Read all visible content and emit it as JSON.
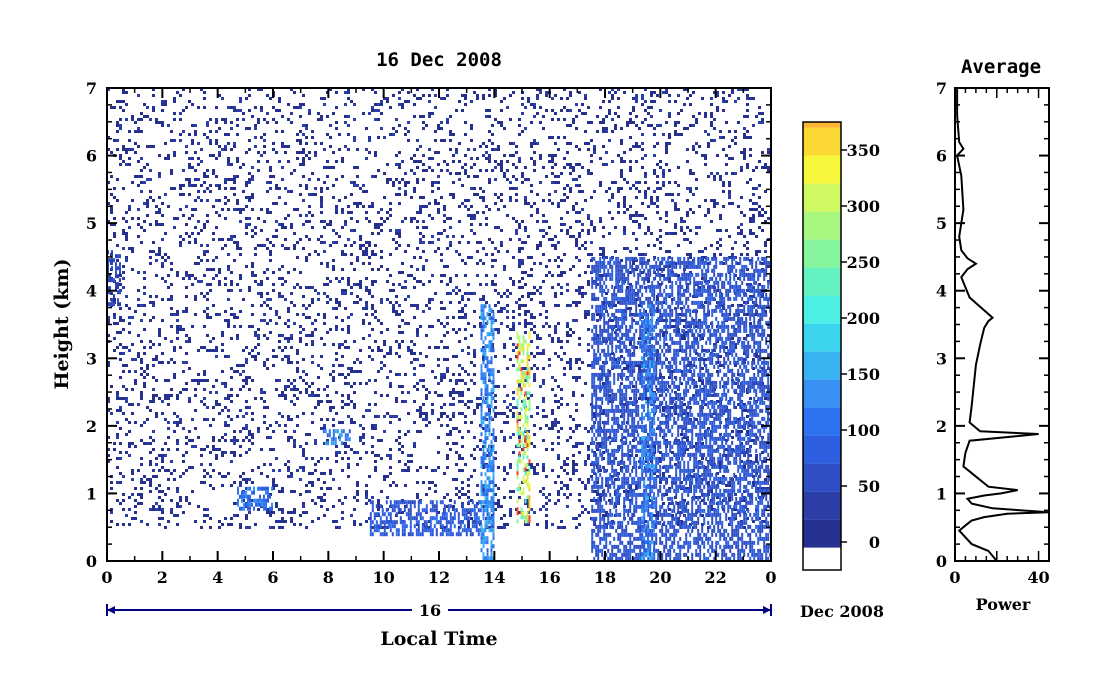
{
  "chart_data": [
    {
      "type": "heatmap",
      "title": "16 Dec 2008",
      "xlabel": "Local Time",
      "ylabel": "Height (km)",
      "x_ticks": [
        "0",
        "2",
        "4",
        "6",
        "8",
        "10",
        "12",
        "14",
        "16",
        "18",
        "20",
        "22",
        "0"
      ],
      "y_ticks": [
        "0",
        "1",
        "2",
        "3",
        "4",
        "5",
        "6",
        "7"
      ],
      "xlim": [
        0,
        24
      ],
      "ylim": [
        0,
        7
      ],
      "date_bar": {
        "day_label": "16",
        "end_label": "Dec 2008"
      },
      "colorbar": {
        "range": [
          -25,
          375
        ],
        "tick_labels": [
          "0",
          "50",
          "100",
          "150",
          "200",
          "250",
          "300",
          "350"
        ],
        "tick_values": [
          0,
          50,
          100,
          150,
          200,
          250,
          300,
          350
        ],
        "colors": [
          "#ffffff",
          "#25308f",
          "#2c3fa8",
          "#2f4ec4",
          "#2e5fe0",
          "#2e74f0",
          "#3891f2",
          "#38b2f0",
          "#3bd3ee",
          "#4ef0e6",
          "#64f2c0",
          "#86f59d",
          "#a8f77f",
          "#d0f860",
          "#f6f63a",
          "#fad733",
          "#fbb531",
          "#f9902e",
          "#f76c2c",
          "#f3412a"
        ],
        "bounds": [
          -25,
          -5,
          20,
          45,
          70,
          95,
          120,
          145,
          170,
          195,
          220,
          245,
          270,
          295,
          320,
          345,
          370,
          375
        ]
      },
      "features": [
        {
          "label": "noise",
          "x_range": [
            0,
            24
          ],
          "height_range": [
            0.5,
            7
          ],
          "value_range": [
            0,
            25
          ]
        },
        {
          "label": "echo layer",
          "x_range": [
            0,
            0.5
          ],
          "height_range": [
            3.8,
            4.6
          ],
          "value": 60
        },
        {
          "label": "echo layer",
          "x_range": [
            4.7,
            6.0
          ],
          "height_range": [
            0.8,
            1.1
          ],
          "value": 120
        },
        {
          "label": "echo layer",
          "x_range": [
            7.8,
            8.8
          ],
          "height_range": [
            1.75,
            1.95
          ],
          "value": 140
        },
        {
          "label": "echo layer",
          "x_range": [
            9.5,
            13.5
          ],
          "height_range": [
            0.4,
            0.9
          ],
          "value": 90
        },
        {
          "label": "echo column",
          "x_range": [
            13.5,
            14.0
          ],
          "height_range": [
            0,
            3.8
          ],
          "value": 150
        },
        {
          "label": "echo column",
          "x_range": [
            14.8,
            15.3
          ],
          "height_range": [
            0.6,
            3.4
          ],
          "value": 360
        },
        {
          "label": "echo column",
          "x_range": [
            17.5,
            24
          ],
          "height_range": [
            0,
            4.5
          ],
          "value": 80
        },
        {
          "label": "echo column",
          "x_range": [
            19.3,
            19.8
          ],
          "height_range": [
            0,
            3.8
          ],
          "value": 140
        }
      ]
    },
    {
      "type": "line",
      "title": "Average",
      "xlabel": "Power",
      "ylabel": "",
      "x_ticks": [
        "0",
        "40"
      ],
      "y_ticks": [
        "0",
        "1",
        "2",
        "3",
        "4",
        "5",
        "6",
        "7"
      ],
      "xlim": [
        0,
        45
      ],
      "ylim": [
        0,
        7
      ],
      "series": [
        {
          "x": [
            20,
            16,
            8,
            2,
            6,
            8,
            14,
            25,
            45,
            18,
            8,
            6,
            14,
            22,
            30,
            16,
            4,
            5,
            7,
            40,
            12,
            7,
            8,
            9,
            10,
            12,
            14,
            16,
            18,
            7,
            3,
            6,
            10,
            6,
            3,
            2,
            4,
            3,
            1,
            4,
            2,
            1,
            1
          ],
          "y": [
            0,
            0.15,
            0.25,
            0.45,
            0.55,
            0.6,
            0.65,
            0.7,
            0.72,
            0.78,
            0.85,
            0.92,
            0.97,
            1.0,
            1.05,
            1.1,
            1.4,
            1.6,
            1.78,
            1.88,
            1.92,
            2.05,
            2.3,
            2.6,
            2.9,
            3.2,
            3.45,
            3.55,
            3.6,
            3.9,
            4.2,
            4.32,
            4.4,
            4.48,
            4.6,
            4.8,
            5.2,
            5.7,
            6.0,
            6.1,
            6.2,
            6.6,
            7.0
          ]
        }
      ]
    }
  ]
}
